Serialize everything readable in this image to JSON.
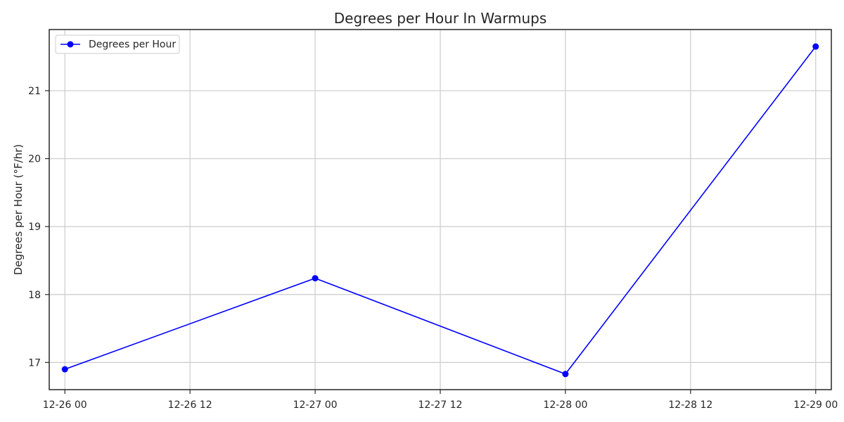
{
  "chart_data": {
    "type": "line",
    "title": "Degrees per Hour In Warmups",
    "xlabel": "",
    "ylabel": "Degrees per Hour (°F/hr)",
    "x_axis_kind": "datetime",
    "xlim": [
      "2025-12-25T22:30",
      "2025-12-29T01:30"
    ],
    "ylim": [
      16.6,
      21.9
    ],
    "x_ticks": [
      {
        "value": "2025-12-26T00:00",
        "label": "12-26 00"
      },
      {
        "value": "2025-12-26T12:00",
        "label": "12-26 12"
      },
      {
        "value": "2025-12-27T00:00",
        "label": "12-27 00"
      },
      {
        "value": "2025-12-27T12:00",
        "label": "12-27 12"
      },
      {
        "value": "2025-12-28T00:00",
        "label": "12-28 00"
      },
      {
        "value": "2025-12-28T12:00",
        "label": "12-28 12"
      },
      {
        "value": "2025-12-29T00:00",
        "label": "12-29 00"
      }
    ],
    "y_ticks": [
      {
        "value": 17,
        "label": "17"
      },
      {
        "value": 18,
        "label": "18"
      },
      {
        "value": 19,
        "label": "19"
      },
      {
        "value": 20,
        "label": "20"
      },
      {
        "value": 21,
        "label": "21"
      }
    ],
    "grid": true,
    "legend_position": "top-left",
    "series": [
      {
        "name": "Degrees per Hour",
        "color": "#0000ff",
        "marker": "circle",
        "x": [
          "2025-12-26T00:00",
          "2025-12-27T00:00",
          "2025-12-28T00:00",
          "2025-12-29T00:00"
        ],
        "y": [
          16.9,
          18.24,
          16.83,
          21.65
        ]
      }
    ]
  }
}
